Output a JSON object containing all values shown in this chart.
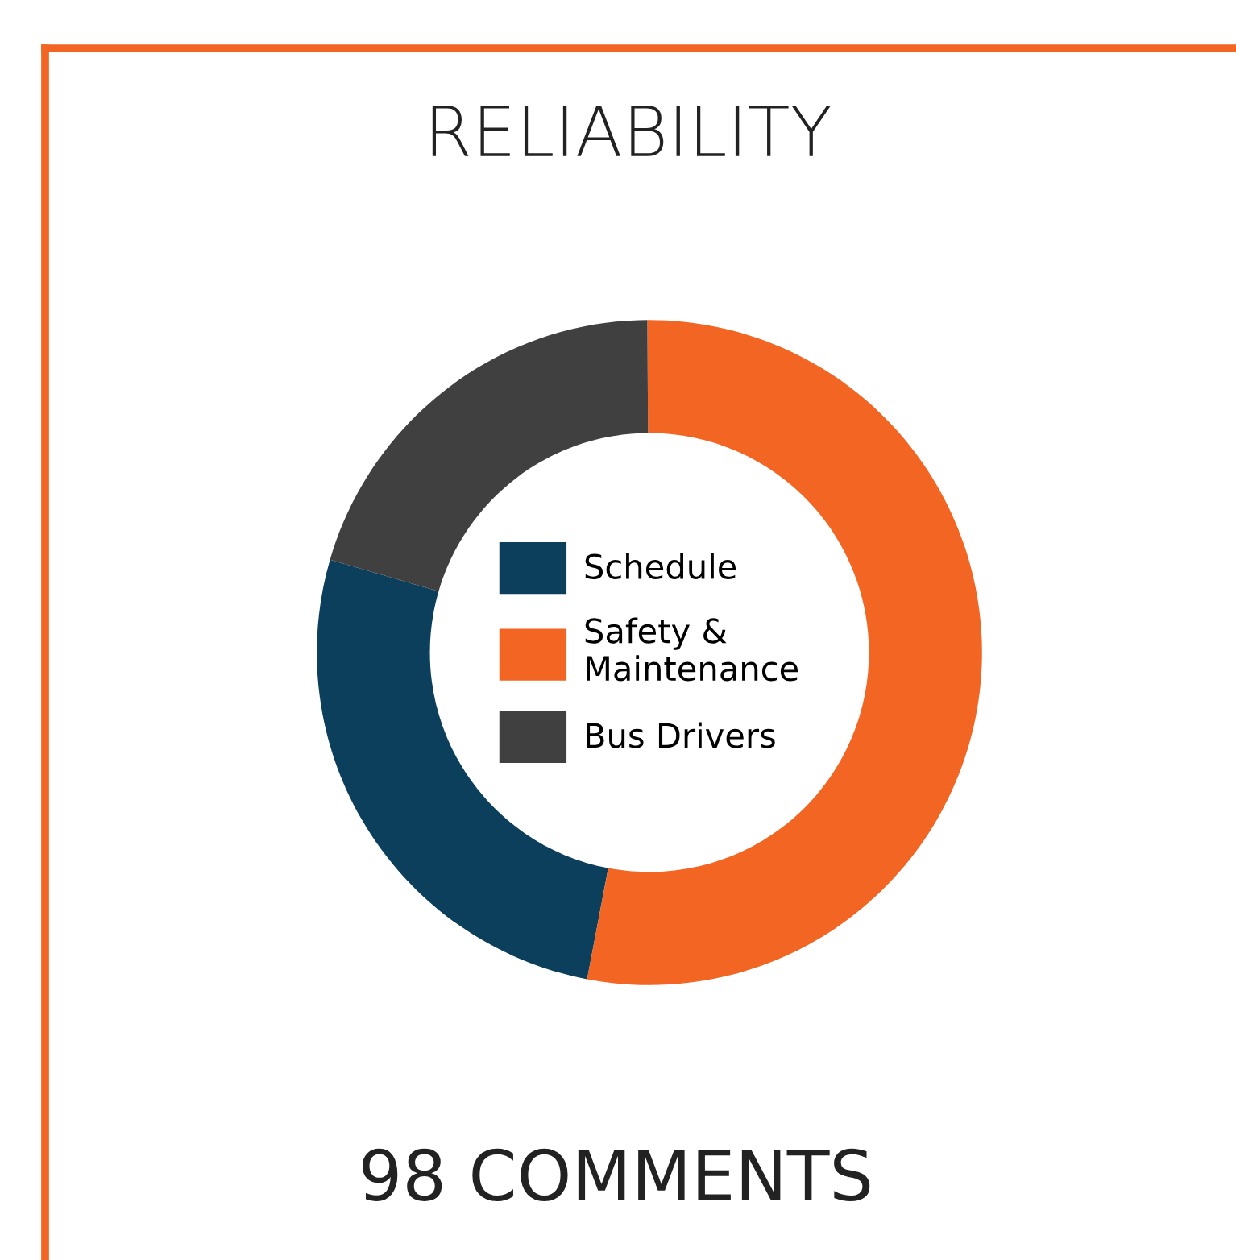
{
  "chart_data": {
    "type": "donut",
    "title": "RELIABILITY",
    "categories": [
      "Schedule",
      "Safety &\nMaintenance",
      "Bus Drivers"
    ],
    "values": [
      26.5,
      53.1,
      20.4
    ],
    "colors": [
      "#0b3f5c",
      "#f26522",
      "#404040"
    ],
    "legend": "center",
    "annotations": [
      "98 COMMENTS"
    ]
  }
}
